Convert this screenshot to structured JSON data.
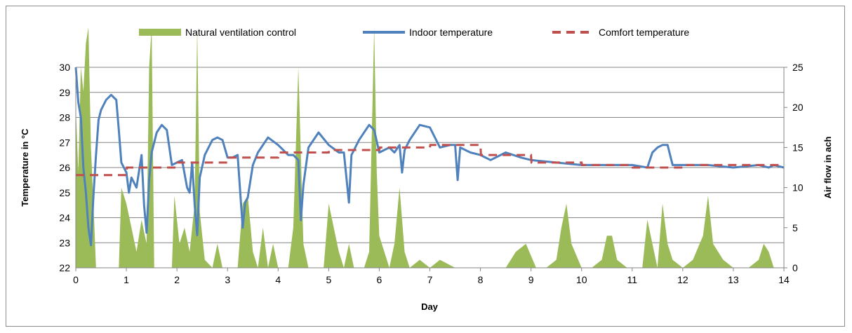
{
  "chart_data": {
    "type": "line",
    "title": "",
    "xlabel": "Day",
    "ylabel": "Temperature in °C",
    "y2label": "Air flow in ach",
    "xlim": [
      0,
      14
    ],
    "ylim": [
      22,
      30
    ],
    "y2lim": [
      0,
      25
    ],
    "x_ticks": [
      "0",
      "1",
      "2",
      "3",
      "4",
      "5",
      "6",
      "7",
      "8",
      "9",
      "10",
      "11",
      "12",
      "13",
      "14"
    ],
    "y_ticks": [
      "22",
      "23",
      "24",
      "25",
      "26",
      "27",
      "28",
      "29",
      "30"
    ],
    "y2_ticks": [
      "0",
      "5",
      "10",
      "15",
      "20",
      "25"
    ],
    "grid": "horizontal",
    "legend_position": "top",
    "colors": {
      "ventilation": "#9bbb59",
      "indoor": "#4f81bd",
      "comfort": "#c0504d"
    },
    "series": [
      {
        "name": "Natural ventilation control",
        "type": "area",
        "axis": "right",
        "x": [
          0,
          0.05,
          0.1,
          0.15,
          0.2,
          0.25,
          0.3,
          0.35,
          0.4,
          0.45,
          0.5,
          0.85,
          0.9,
          1.0,
          1.1,
          1.2,
          1.3,
          1.4,
          1.45,
          1.5,
          1.55,
          1.6,
          1.9,
          1.95,
          2.05,
          2.15,
          2.25,
          2.35,
          2.4,
          2.45,
          2.55,
          2.7,
          2.8,
          2.9,
          3.0,
          3.2,
          3.3,
          3.4,
          3.5,
          3.6,
          3.7,
          3.8,
          3.9,
          4.0,
          4.2,
          4.3,
          4.4,
          4.5,
          4.6,
          4.7,
          4.9,
          5.0,
          5.2,
          5.3,
          5.4,
          5.5,
          5.7,
          5.8,
          5.9,
          5.95,
          6.0,
          6.2,
          6.3,
          6.4,
          6.5,
          6.6,
          6.8,
          7.0,
          7.2,
          7.5,
          7.6,
          8.0,
          8.3,
          8.5,
          8.7,
          8.9,
          9.1,
          9.3,
          9.5,
          9.6,
          9.7,
          9.8,
          10.0,
          10.2,
          10.4,
          10.5,
          10.6,
          10.7,
          10.9,
          11.0,
          11.2,
          11.3,
          11.5,
          11.6,
          11.7,
          11.8,
          12.0,
          12.2,
          12.4,
          12.5,
          12.6,
          12.8,
          13.0,
          13.3,
          13.5,
          13.6,
          13.7,
          13.8,
          14.0
        ],
        "values": [
          20,
          12,
          25,
          22,
          28,
          30,
          15,
          8,
          0,
          0,
          0,
          0,
          10,
          8,
          5,
          2,
          6,
          3,
          25,
          30,
          0,
          0,
          0,
          9,
          3,
          5,
          2,
          8,
          30,
          7,
          1,
          0,
          3,
          0,
          0,
          0,
          8,
          9,
          2,
          0,
          5,
          0,
          3,
          0,
          0,
          5,
          25,
          3,
          0,
          0,
          0,
          8,
          2,
          0,
          3,
          0,
          0,
          2,
          30,
          12,
          4,
          0,
          3,
          10,
          2,
          0,
          1,
          0,
          1,
          0,
          0,
          0,
          0,
          0,
          2,
          3,
          0,
          0,
          1,
          5,
          8,
          3,
          0,
          0,
          1,
          4,
          4,
          1,
          0,
          0,
          0,
          6,
          0,
          8,
          3,
          1,
          0,
          1,
          4,
          9,
          3,
          1,
          0,
          0,
          1,
          3,
          2,
          0,
          0
        ]
      },
      {
        "name": "Indoor temperature",
        "type": "line",
        "axis": "left",
        "x": [
          0,
          0.05,
          0.1,
          0.15,
          0.2,
          0.25,
          0.3,
          0.35,
          0.4,
          0.45,
          0.5,
          0.6,
          0.7,
          0.8,
          0.85,
          0.9,
          1.0,
          1.05,
          1.1,
          1.2,
          1.3,
          1.35,
          1.4,
          1.45,
          1.5,
          1.6,
          1.7,
          1.8,
          1.9,
          2.0,
          2.1,
          2.2,
          2.25,
          2.3,
          2.35,
          2.4,
          2.45,
          2.55,
          2.7,
          2.8,
          2.9,
          3.0,
          3.1,
          3.2,
          3.3,
          3.35,
          3.4,
          3.5,
          3.6,
          3.8,
          4.0,
          4.2,
          4.3,
          4.4,
          4.45,
          4.5,
          4.6,
          4.8,
          5.0,
          5.2,
          5.3,
          5.4,
          5.45,
          5.5,
          5.6,
          5.8,
          5.9,
          6.0,
          6.2,
          6.3,
          6.4,
          6.45,
          6.5,
          6.6,
          6.8,
          7.0,
          7.2,
          7.4,
          7.5,
          7.55,
          7.6,
          7.8,
          8.0,
          8.2,
          8.5,
          8.8,
          9.0,
          9.5,
          10.0,
          10.5,
          11.0,
          11.3,
          11.4,
          11.5,
          11.6,
          11.7,
          11.8,
          11.9,
          12.0,
          12.5,
          13.0,
          13.5,
          13.7,
          13.8,
          14.0
        ],
        "values": [
          30.0,
          28.6,
          28.0,
          26.0,
          25.0,
          23.6,
          22.9,
          24.9,
          26.5,
          27.9,
          28.3,
          28.7,
          28.9,
          28.7,
          27.5,
          26.2,
          25.8,
          25.0,
          25.6,
          25.2,
          26.5,
          24.5,
          23.4,
          25.5,
          26.6,
          27.4,
          27.7,
          27.5,
          26.1,
          26.2,
          26.3,
          25.2,
          25.0,
          26.2,
          24.5,
          23.3,
          25.6,
          26.5,
          27.1,
          27.2,
          27.1,
          26.4,
          26.4,
          26.5,
          23.6,
          24.6,
          24.8,
          26.1,
          26.6,
          27.2,
          26.9,
          26.5,
          26.5,
          26.3,
          23.9,
          25.3,
          26.8,
          27.4,
          26.9,
          26.6,
          26.6,
          24.6,
          26.5,
          26.7,
          27.1,
          27.7,
          27.5,
          26.6,
          26.8,
          26.6,
          26.9,
          25.8,
          26.7,
          27.1,
          27.7,
          27.6,
          26.8,
          26.9,
          26.9,
          25.5,
          26.8,
          26.6,
          26.5,
          26.3,
          26.6,
          26.4,
          26.3,
          26.2,
          26.1,
          26.1,
          26.1,
          26.0,
          26.6,
          26.8,
          26.9,
          26.9,
          26.1,
          26.1,
          26.1,
          26.1,
          26.0,
          26.1,
          26.0,
          26.1,
          26.0
        ]
      },
      {
        "name": "Comfort temperature",
        "type": "line",
        "axis": "left",
        "x": [
          0,
          1,
          1.01,
          2,
          2.01,
          3,
          3.01,
          4,
          4.01,
          5,
          5.01,
          6,
          6.01,
          7,
          7.01,
          8,
          8.01,
          9,
          9.01,
          10,
          10.01,
          11,
          11.01,
          12,
          12.01,
          13,
          13.01,
          14
        ],
        "values": [
          25.7,
          25.7,
          26.0,
          26.0,
          26.2,
          26.2,
          26.4,
          26.4,
          26.6,
          26.6,
          26.7,
          26.7,
          26.8,
          26.8,
          26.9,
          26.9,
          26.5,
          26.5,
          26.2,
          26.2,
          26.1,
          26.1,
          26.0,
          26.0,
          26.1,
          26.1,
          26.1,
          26.1
        ]
      }
    ]
  }
}
